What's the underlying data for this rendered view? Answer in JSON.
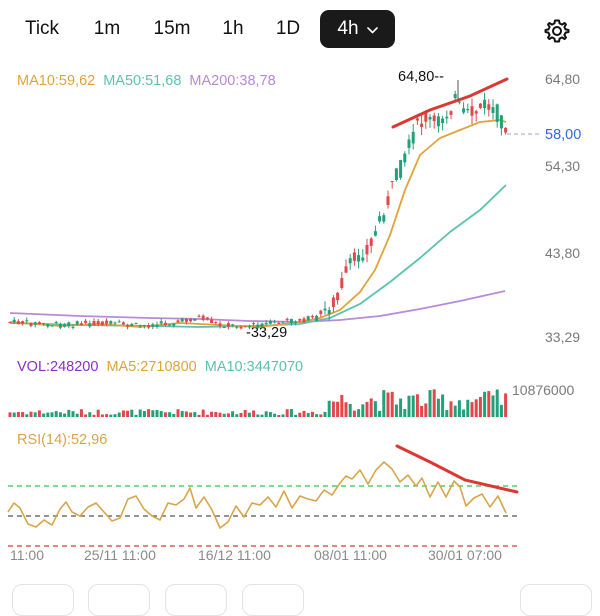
{
  "toolbar": {
    "tabs": [
      "Tick",
      "1m",
      "15m",
      "1h",
      "1D",
      "4h"
    ],
    "active_tab": "4h"
  },
  "ma_legend": {
    "ma10": "MA10:59,62",
    "ma50": "MA50:51,68",
    "ma200": "MA200:38,78"
  },
  "price_axis": [
    "64,80",
    "58,00",
    "54,30",
    "43,80",
    "33,29"
  ],
  "annotations": {
    "high": "64,80",
    "low": "33,29"
  },
  "volume_legend": {
    "vol": "VOL:248200",
    "ma5": "MA5:2710800",
    "ma10": "MA10:3447070"
  },
  "volume_axis_max": "10876000",
  "rsi_legend": "RSI(14):52,96",
  "date_axis": [
    "11:00",
    "25/11 11:00",
    "16/12 11:00",
    "08/01 11:00",
    "30/01 07:00"
  ],
  "colors": {
    "ma10": "#e0a33a",
    "ma50": "#5cc2b0",
    "ma200": "#b98ad8",
    "vol": "#8b2fc9",
    "up": "#22a07a",
    "down": "#e2474b",
    "rsi": "#d9a54a",
    "trendline": "#d83a33",
    "current_price": "#2f6bd8"
  },
  "chart_data": {
    "type": "candlestick",
    "current_price": 58.0,
    "high": 64.8,
    "low": 33.29,
    "price_ticks": [
      64.8,
      58.0,
      54.3,
      43.8,
      33.29
    ],
    "rsi_levels": [
      70,
      50,
      30
    ]
  }
}
